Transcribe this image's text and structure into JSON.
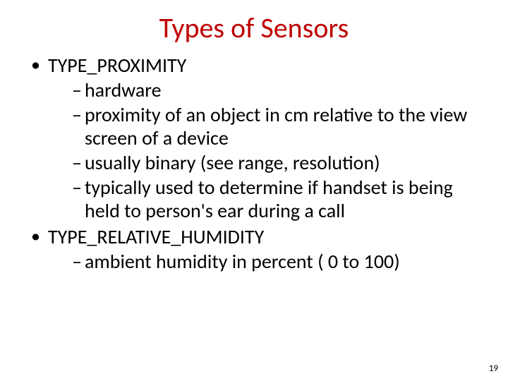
{
  "title": {
    "text": "Types of Sensors",
    "color": "#c00000",
    "fontsize": 40
  },
  "body_fontsize": 28,
  "text_color": "#000000",
  "background_color": "#ffffff",
  "bullets": [
    {
      "level": 1,
      "text": "TYPE_PROXIMITY"
    },
    {
      "level": 2,
      "text": "hardware"
    },
    {
      "level": 2,
      "text": "proximity of an object in cm relative to the view screen of a device"
    },
    {
      "level": 2,
      "text": "usually binary (see range, resolution)"
    },
    {
      "level": 2,
      "text": "typically used to determine if handset is being held to person's ear during a call"
    },
    {
      "level": 1,
      "text": "TYPE_RELATIVE_HUMIDITY"
    },
    {
      "level": 2,
      "text": "ambient humidity in percent ( 0 to 100)"
    }
  ],
  "page_number": "19"
}
